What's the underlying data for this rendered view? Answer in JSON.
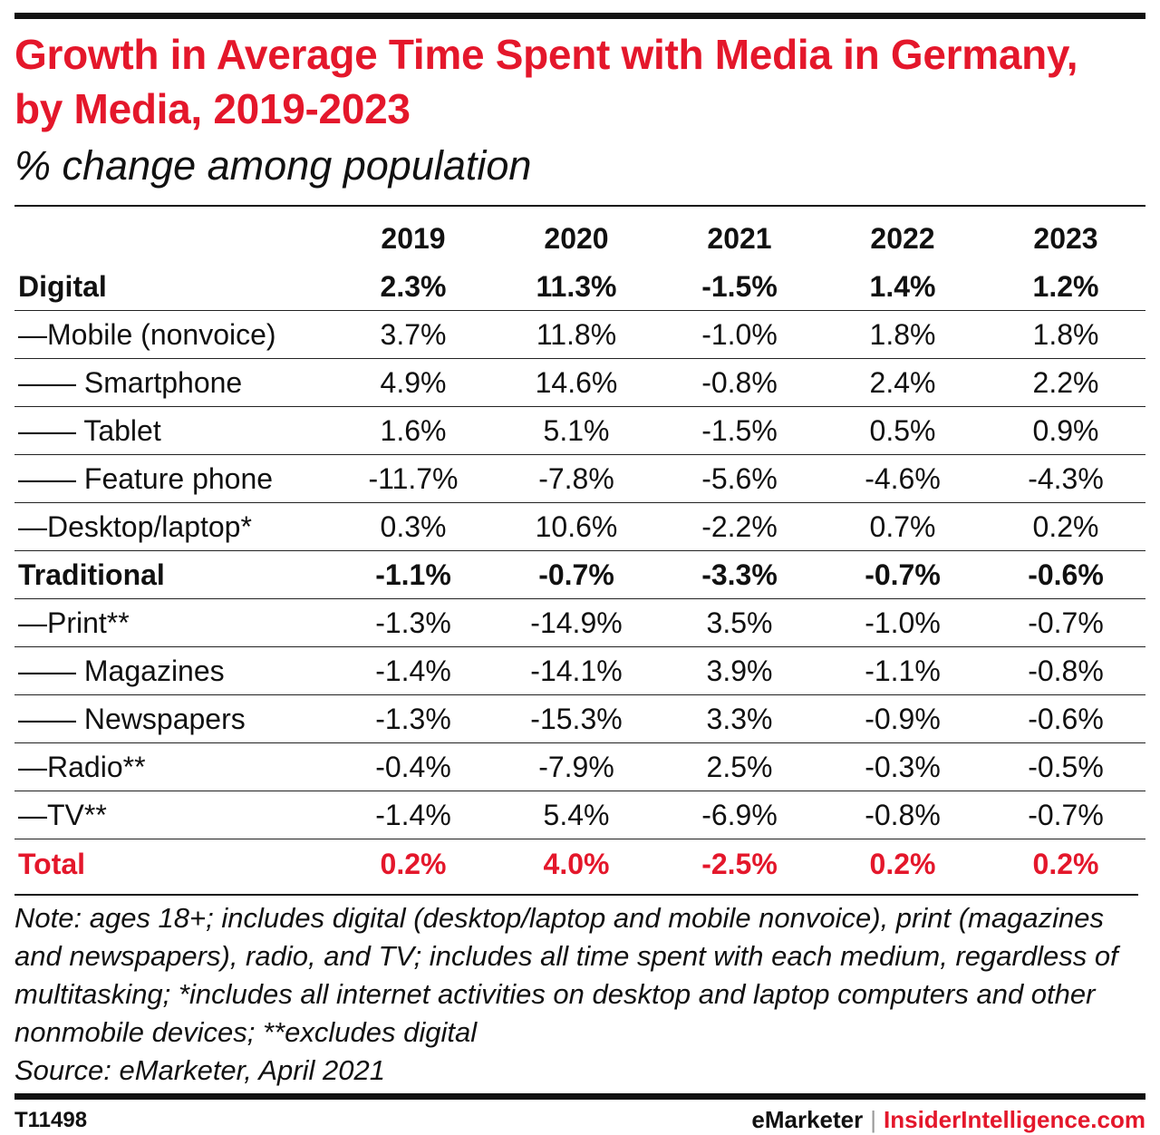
{
  "header": {
    "title": "Growth in Average Time Spent with Media in Germany, by Media, 2019-2023",
    "subtitle": "% change among population"
  },
  "chart_data": {
    "type": "table",
    "columns": [
      "2019",
      "2020",
      "2021",
      "2022",
      "2023"
    ],
    "rows": [
      {
        "label": "Digital",
        "values": [
          "2.3%",
          "11.3%",
          "-1.5%",
          "1.4%",
          "1.2%"
        ]
      },
      {
        "label": "—Mobile (nonvoice)",
        "values": [
          "3.7%",
          "11.8%",
          "-1.0%",
          "1.8%",
          "1.8%"
        ]
      },
      {
        "label": "—— Smartphone",
        "values": [
          "4.9%",
          "14.6%",
          "-0.8%",
          "2.4%",
          "2.2%"
        ]
      },
      {
        "label": "—— Tablet",
        "values": [
          "1.6%",
          "5.1%",
          "-1.5%",
          "0.5%",
          "0.9%"
        ]
      },
      {
        "label": "—— Feature phone",
        "values": [
          "-11.7%",
          "-7.8%",
          "-5.6%",
          "-4.6%",
          "-4.3%"
        ]
      },
      {
        "label": "—Desktop/laptop*",
        "values": [
          "0.3%",
          "10.6%",
          "-2.2%",
          "0.7%",
          "0.2%"
        ]
      },
      {
        "label": "Traditional",
        "values": [
          "-1.1%",
          "-0.7%",
          "-3.3%",
          "-0.7%",
          "-0.6%"
        ]
      },
      {
        "label": "—Print**",
        "values": [
          "-1.3%",
          "-14.9%",
          "3.5%",
          "-1.0%",
          "-0.7%"
        ]
      },
      {
        "label": "—— Magazines",
        "values": [
          "-1.4%",
          "-14.1%",
          "3.9%",
          "-1.1%",
          "-0.8%"
        ]
      },
      {
        "label": "—— Newspapers",
        "values": [
          "-1.3%",
          "-15.3%",
          "3.3%",
          "-0.9%",
          "-0.6%"
        ]
      },
      {
        "label": "—Radio**",
        "values": [
          "-0.4%",
          "-7.9%",
          "2.5%",
          "-0.3%",
          "-0.5%"
        ]
      },
      {
        "label": "—TV**",
        "values": [
          "-1.4%",
          "5.4%",
          "-6.9%",
          "-0.8%",
          "-0.7%"
        ]
      },
      {
        "label": "Total",
        "values": [
          "0.2%",
          "4.0%",
          "-2.5%",
          "0.2%",
          "0.2%"
        ]
      }
    ]
  },
  "note": {
    "text": "Note: ages 18+; includes digital (desktop/laptop and mobile nonvoice), print (magazines and newspapers), radio, and TV; includes all time spent with each medium, regardless of multitasking; *includes all internet activities on desktop and laptop computers and other nonmobile devices; **excludes digital",
    "source": "Source: eMarketer, April 2021"
  },
  "footer": {
    "chart_id": "T11498",
    "brand": "eMarketer",
    "separator": "|",
    "brand_secondary": "InsiderIntelligence.com"
  },
  "colors": {
    "accent_red": "#e4172b",
    "text": "#111111"
  }
}
